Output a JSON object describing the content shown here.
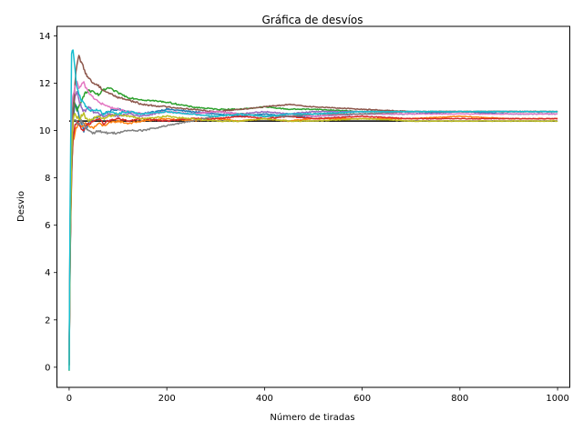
{
  "chart_data": {
    "type": "line",
    "title": "Gráfica de desvíos",
    "xlabel": "Número de tiradas",
    "ylabel": "Desvio",
    "xlim": [
      -25,
      1025
    ],
    "ylim": [
      -0.85,
      14.4
    ],
    "xticks": [
      0,
      200,
      400,
      600,
      800,
      1000
    ],
    "yticks": [
      0,
      2,
      4,
      6,
      8,
      10,
      12,
      14
    ],
    "xtick_labels": [
      "0",
      "200",
      "400",
      "600",
      "800",
      "1000"
    ],
    "ytick_labels": [
      "0",
      "2",
      "4",
      "6",
      "8",
      "10",
      "12",
      "14"
    ],
    "grid": false,
    "legend": "none",
    "reference_line": {
      "y": 10.4,
      "x": [
        0,
        1000
      ],
      "color": "#000000"
    },
    "series": [
      {
        "color": "#1f77b4",
        "x": [
          0,
          2,
          5,
          8,
          12,
          16,
          20,
          25,
          30,
          35,
          40,
          50,
          60,
          70,
          80,
          100,
          120,
          150,
          200,
          250,
          300,
          350,
          400,
          450,
          500,
          600,
          700,
          800,
          900,
          1000
        ],
        "values": [
          0,
          4.5,
          9.0,
          10.5,
          11.2,
          11.0,
          10.6,
          10.3,
          10.0,
          10.1,
          10.3,
          10.5,
          10.6,
          10.7,
          10.8,
          10.9,
          10.8,
          10.7,
          10.9,
          10.8,
          10.7,
          10.6,
          10.7,
          10.6,
          10.6,
          10.7,
          10.7,
          10.8,
          10.7,
          10.7
        ]
      },
      {
        "color": "#ff7f0e",
        "x": [
          0,
          2,
          5,
          8,
          12,
          16,
          20,
          25,
          30,
          35,
          40,
          50,
          60,
          70,
          80,
          100,
          120,
          150,
          200,
          250,
          300,
          350,
          400,
          450,
          500,
          600,
          700,
          800,
          900,
          1000
        ],
        "values": [
          0,
          5.0,
          8.5,
          9.5,
          10.0,
          10.2,
          10.3,
          10.1,
          10.2,
          10.3,
          10.2,
          10.1,
          10.3,
          10.2,
          10.3,
          10.4,
          10.3,
          10.4,
          10.5,
          10.4,
          10.5,
          10.4,
          10.5,
          10.4,
          10.5,
          10.5,
          10.5,
          10.6,
          10.5,
          10.5
        ]
      },
      {
        "color": "#2ca02c",
        "x": [
          0,
          2,
          5,
          8,
          12,
          16,
          20,
          25,
          30,
          35,
          40,
          50,
          60,
          70,
          80,
          100,
          120,
          150,
          200,
          250,
          300,
          350,
          400,
          450,
          500,
          600,
          700,
          800,
          900,
          1000
        ],
        "values": [
          0,
          6.0,
          10.5,
          11.5,
          11.0,
          10.8,
          11.0,
          11.3,
          11.5,
          11.6,
          11.7,
          11.6,
          11.5,
          11.7,
          11.8,
          11.6,
          11.4,
          11.3,
          11.2,
          11.0,
          10.9,
          10.9,
          11.0,
          10.9,
          10.9,
          10.8,
          10.8,
          10.8,
          10.8,
          10.8
        ]
      },
      {
        "color": "#d62728",
        "x": [
          0,
          2,
          5,
          8,
          12,
          16,
          20,
          25,
          30,
          35,
          40,
          50,
          60,
          70,
          80,
          100,
          120,
          150,
          200,
          250,
          300,
          350,
          400,
          450,
          500,
          600,
          700,
          800,
          900,
          1000
        ],
        "values": [
          0,
          4.8,
          8.2,
          9.6,
          10.2,
          10.4,
          10.3,
          10.1,
          10.0,
          10.2,
          10.3,
          10.4,
          10.5,
          10.3,
          10.4,
          10.5,
          10.4,
          10.5,
          10.4,
          10.5,
          10.5,
          10.6,
          10.5,
          10.6,
          10.5,
          10.6,
          10.5,
          10.5,
          10.5,
          10.5
        ]
      },
      {
        "color": "#9467bd",
        "x": [
          0,
          2,
          5,
          8,
          12,
          16,
          20,
          25,
          30,
          35,
          40,
          50,
          60,
          70,
          80,
          100,
          120,
          150,
          200,
          250,
          300,
          350,
          400,
          450,
          500,
          600,
          700,
          800,
          900,
          1000
        ],
        "values": [
          0,
          5.5,
          9.5,
          10.8,
          11.4,
          11.6,
          11.3,
          11.0,
          10.8,
          10.9,
          11.0,
          10.8,
          10.7,
          10.6,
          10.7,
          10.6,
          10.7,
          10.6,
          10.8,
          10.7,
          10.8,
          10.7,
          10.8,
          10.7,
          10.8,
          10.8,
          10.8,
          10.8,
          10.8,
          10.8
        ]
      },
      {
        "color": "#8c564b",
        "x": [
          0,
          2,
          5,
          8,
          12,
          16,
          20,
          25,
          30,
          35,
          40,
          50,
          60,
          70,
          80,
          100,
          120,
          150,
          200,
          250,
          300,
          350,
          400,
          450,
          500,
          600,
          700,
          800,
          900,
          1000
        ],
        "values": [
          0,
          4.6,
          8.0,
          10.5,
          12.0,
          12.8,
          13.1,
          12.9,
          12.6,
          12.4,
          12.2,
          12.0,
          11.9,
          11.7,
          11.6,
          11.4,
          11.3,
          11.1,
          11.0,
          10.9,
          10.8,
          10.9,
          11.0,
          11.1,
          11.0,
          10.9,
          10.8,
          10.8,
          10.8,
          10.8
        ]
      },
      {
        "color": "#e377c2",
        "x": [
          0,
          2,
          5,
          8,
          12,
          16,
          20,
          25,
          30,
          35,
          40,
          50,
          60,
          70,
          80,
          100,
          120,
          150,
          200,
          250,
          300,
          350,
          400,
          450,
          500,
          600,
          700,
          800,
          900,
          1000
        ],
        "values": [
          0,
          5.8,
          10.8,
          11.5,
          11.9,
          12.0,
          11.8,
          11.9,
          12.0,
          11.8,
          11.6,
          11.4,
          11.2,
          11.1,
          11.0,
          10.9,
          10.8,
          10.7,
          10.8,
          10.7,
          10.8,
          10.7,
          10.6,
          10.7,
          10.6,
          10.7,
          10.7,
          10.7,
          10.7,
          10.7
        ]
      },
      {
        "color": "#7f7f7f",
        "x": [
          0,
          2,
          5,
          8,
          12,
          16,
          20,
          25,
          30,
          35,
          40,
          50,
          60,
          70,
          80,
          100,
          120,
          150,
          200,
          250,
          300,
          350,
          400,
          450,
          500,
          600,
          700,
          800,
          900,
          1000
        ],
        "values": [
          0,
          5.2,
          9.0,
          10.2,
          10.5,
          10.3,
          10.2,
          10.4,
          10.3,
          10.1,
          10.0,
          9.9,
          10.0,
          9.9,
          9.9,
          9.9,
          10.0,
          10.0,
          10.2,
          10.4,
          10.6,
          10.7,
          10.6,
          10.6,
          10.7,
          10.7,
          10.8,
          10.8,
          10.8,
          10.8
        ]
      },
      {
        "color": "#bcbd22",
        "x": [
          0,
          2,
          5,
          8,
          12,
          16,
          20,
          25,
          30,
          35,
          40,
          50,
          60,
          70,
          80,
          100,
          120,
          150,
          200,
          250,
          300,
          350,
          400,
          450,
          500,
          600,
          700,
          800,
          900,
          1000
        ],
        "values": [
          0,
          5.0,
          9.2,
          10.4,
          10.8,
          10.6,
          10.5,
          10.6,
          10.7,
          10.5,
          10.4,
          10.5,
          10.6,
          10.5,
          10.6,
          10.7,
          10.6,
          10.5,
          10.6,
          10.5,
          10.4,
          10.4,
          10.5,
          10.4,
          10.4,
          10.5,
          10.4,
          10.4,
          10.4,
          10.4
        ]
      },
      {
        "color": "#17becf",
        "x": [
          0,
          2,
          5,
          8,
          12,
          16,
          20,
          25,
          30,
          35,
          40,
          50,
          60,
          70,
          80,
          100,
          120,
          150,
          200,
          250,
          300,
          350,
          400,
          450,
          500,
          600,
          700,
          800,
          900,
          1000
        ],
        "values": [
          0,
          7.0,
          13.2,
          13.5,
          12.5,
          11.8,
          11.5,
          11.3,
          11.2,
          11.0,
          10.9,
          10.8,
          10.9,
          10.7,
          10.8,
          10.7,
          10.8,
          10.7,
          10.8,
          10.7,
          10.6,
          10.7,
          10.6,
          10.7,
          10.7,
          10.8,
          10.8,
          10.8,
          10.8,
          10.8
        ]
      }
    ]
  }
}
